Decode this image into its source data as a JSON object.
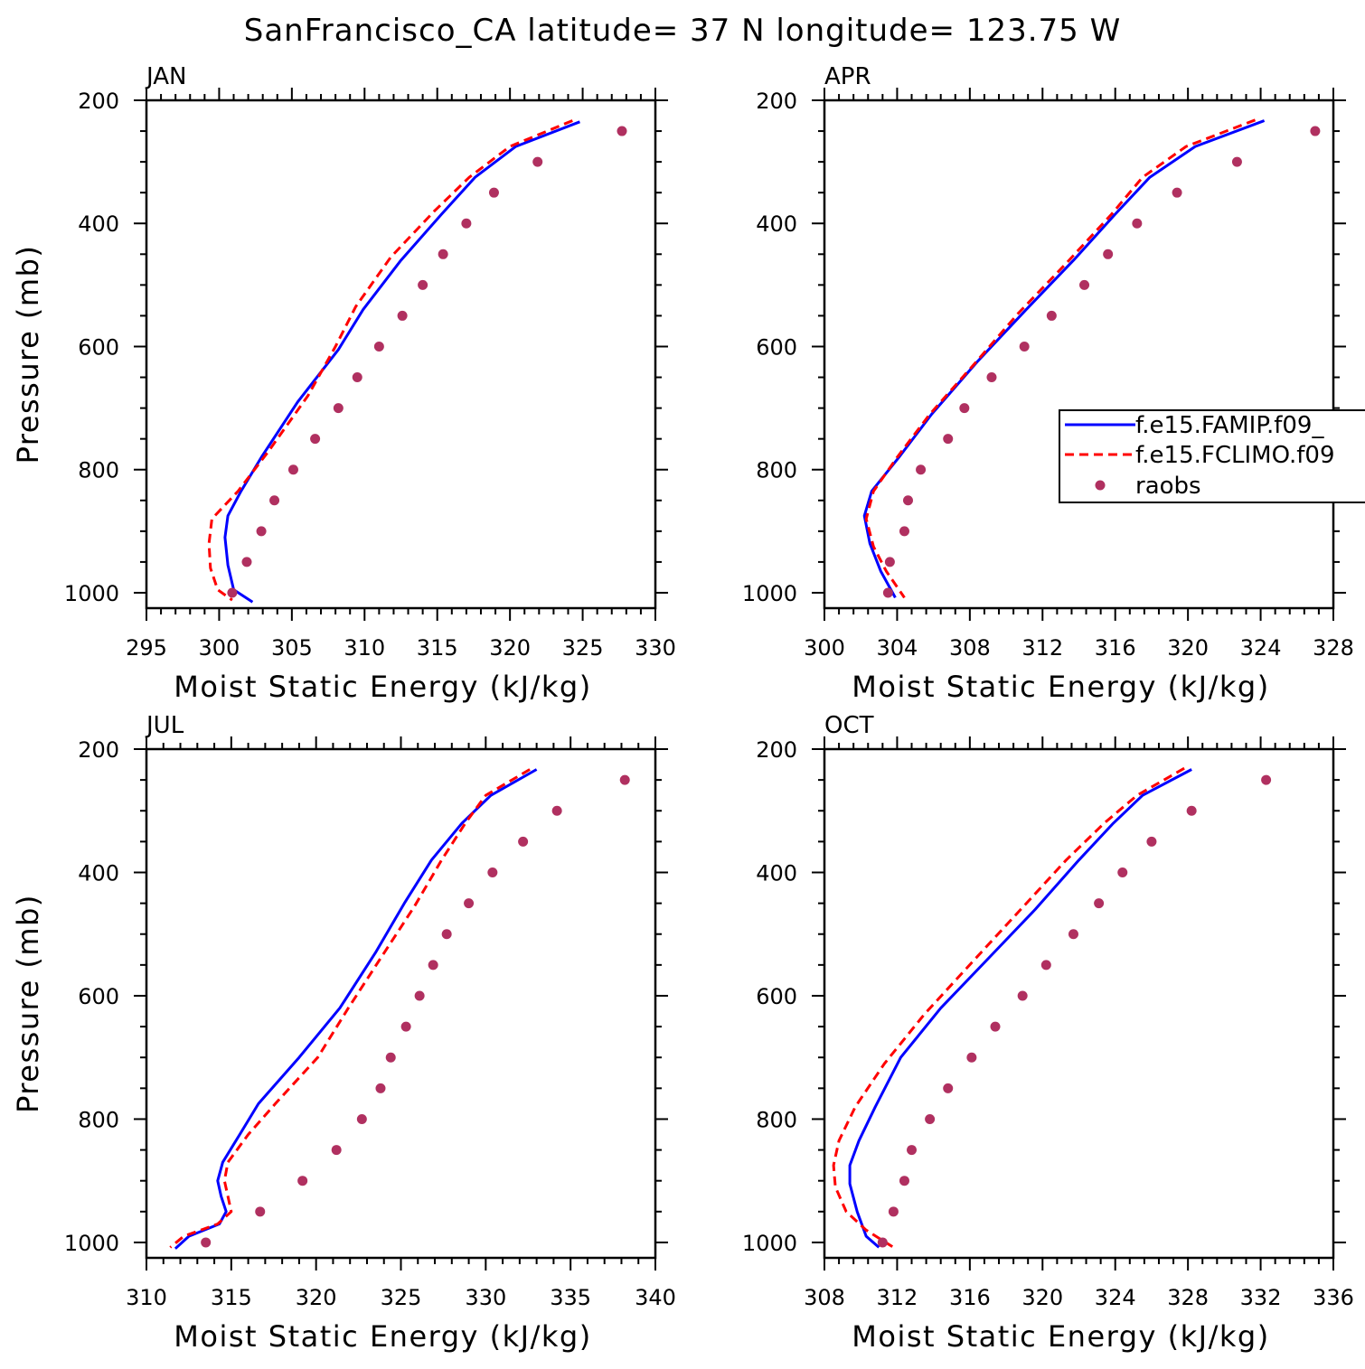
{
  "title": "SanFrancisco_CA  latitude= 37 N longitude= 123.75 W",
  "colors": {
    "famip": "#0000ff",
    "fclimo": "#ff0000",
    "raobs": "#b03060",
    "axes": "#000000",
    "background": "#ffffff"
  },
  "legend": {
    "location": "APR panel, right side",
    "entries": [
      {
        "label": "f.e15.FAMIP.f09_",
        "style": "solid",
        "color": "#0000ff"
      },
      {
        "label": "f.e15.FCLIMO.f09",
        "style": "dashed",
        "color": "#ff0000"
      },
      {
        "label": "raobs",
        "style": "dot",
        "color": "#b03060"
      }
    ]
  },
  "chart_data": [
    {
      "type": "line",
      "panel": "JAN",
      "xlabel": "Moist Static Energy (kJ/kg)",
      "ylabel": "Pressure (mb)",
      "xlim": [
        295,
        330
      ],
      "ylim": [
        1025,
        200
      ],
      "x_ticks": [
        295,
        300,
        305,
        310,
        315,
        320,
        325,
        330
      ],
      "y_ticks": [
        200,
        400,
        600,
        800,
        1000
      ],
      "series": [
        {
          "name": "f.e15.FAMIP.f09_",
          "style": "solid",
          "x": [
            324.8,
            320.4,
            317.6,
            315.3,
            312.5,
            309.9,
            308.2,
            305.4,
            302.9,
            301.5,
            300.6,
            300.4,
            300.6,
            301.0,
            302.3
          ],
          "y": [
            235,
            275,
            325,
            385,
            460,
            540,
            605,
            690,
            780,
            835,
            875,
            910,
            955,
            995,
            1015
          ]
        },
        {
          "name": "f.e15.FCLIMO.f09",
          "style": "dashed",
          "x": [
            324.3,
            320.0,
            317.2,
            314.8,
            311.8,
            309.4,
            308.0,
            306.1,
            303.4,
            301.3,
            299.5,
            299.3,
            299.4,
            299.9,
            300.9
          ],
          "y": [
            233,
            275,
            325,
            380,
            455,
            535,
            600,
            680,
            770,
            835,
            880,
            920,
            960,
            995,
            1012
          ]
        }
      ],
      "points": {
        "name": "raobs",
        "x": [
          327.7,
          321.9,
          318.9,
          317.0,
          315.4,
          314.0,
          312.6,
          311.0,
          309.5,
          308.2,
          306.6,
          305.1,
          303.8,
          302.9,
          301.9,
          300.9
        ],
        "y": [
          250,
          300,
          350,
          400,
          450,
          500,
          550,
          600,
          650,
          700,
          750,
          800,
          850,
          900,
          950,
          1000
        ]
      }
    },
    {
      "type": "line",
      "panel": "APR",
      "xlabel": "Moist Static Energy (kJ/kg)",
      "ylabel": "",
      "xlim": [
        300,
        328
      ],
      "ylim": [
        1025,
        200
      ],
      "x_ticks": [
        300,
        304,
        308,
        312,
        316,
        320,
        324,
        328
      ],
      "y_ticks": [
        200,
        400,
        600,
        800,
        1000
      ],
      "series": [
        {
          "name": "f.e15.FAMIP.f09_",
          "style": "solid",
          "x": [
            324.2,
            320.4,
            317.9,
            316.0,
            313.7,
            311.1,
            308.4,
            305.9,
            304.1,
            302.6,
            302.2,
            302.5,
            303.1,
            303.9
          ],
          "y": [
            233,
            275,
            325,
            385,
            460,
            540,
            625,
            710,
            780,
            835,
            875,
            920,
            965,
            1008
          ]
        },
        {
          "name": "f.e15.FCLIMO.f09",
          "style": "dashed",
          "x": [
            323.7,
            319.9,
            317.5,
            315.8,
            313.3,
            310.7,
            308.2,
            305.8,
            304.0,
            302.7,
            302.3,
            302.7,
            303.4,
            304.4
          ],
          "y": [
            232,
            275,
            325,
            385,
            465,
            545,
            630,
            710,
            780,
            835,
            880,
            925,
            965,
            1008
          ]
        }
      ],
      "points": {
        "name": "raobs",
        "x": [
          327.0,
          322.7,
          319.4,
          317.2,
          315.6,
          314.3,
          312.5,
          311.0,
          309.2,
          307.7,
          306.8,
          305.3,
          304.6,
          304.4,
          303.6,
          303.5
        ],
        "y": [
          250,
          300,
          350,
          400,
          450,
          500,
          550,
          600,
          650,
          700,
          750,
          800,
          850,
          900,
          950,
          1000
        ]
      }
    },
    {
      "type": "line",
      "panel": "JUL",
      "xlabel": "Moist Static Energy (kJ/kg)",
      "ylabel": "Pressure (mb)",
      "xlim": [
        310,
        340
      ],
      "ylim": [
        1025,
        200
      ],
      "x_ticks": [
        310,
        315,
        320,
        325,
        330,
        335,
        340
      ],
      "y_ticks": [
        200,
        400,
        600,
        800,
        1000
      ],
      "series": [
        {
          "name": "f.e15.FAMIP.f09_",
          "style": "solid",
          "x": [
            333.0,
            330.3,
            328.6,
            326.8,
            325.2,
            323.5,
            321.4,
            319.0,
            316.6,
            315.5,
            314.5,
            314.2,
            314.4,
            314.7,
            314.3,
            312.5,
            311.7
          ],
          "y": [
            233,
            275,
            320,
            380,
            450,
            530,
            620,
            700,
            775,
            825,
            870,
            900,
            925,
            950,
            970,
            990,
            1010
          ]
        },
        {
          "name": "f.e15.FCLIMO.f09",
          "style": "dashed",
          "x": [
            332.6,
            330.0,
            328.8,
            327.4,
            325.8,
            323.9,
            321.9,
            320.1,
            317.6,
            316.0,
            314.8,
            314.6,
            314.8,
            315.0,
            314.2,
            312.2,
            311.4
          ],
          "y": [
            233,
            275,
            320,
            380,
            455,
            535,
            620,
            700,
            775,
            825,
            870,
            900,
            925,
            950,
            970,
            990,
            1008
          ]
        }
      ],
      "points": {
        "name": "raobs",
        "x": [
          338.2,
          334.2,
          332.2,
          330.4,
          329.0,
          327.7,
          326.9,
          326.1,
          325.3,
          324.4,
          323.8,
          322.7,
          321.2,
          319.2,
          316.7,
          313.5
        ],
        "y": [
          250,
          300,
          350,
          400,
          450,
          500,
          550,
          600,
          650,
          700,
          750,
          800,
          850,
          900,
          950,
          1000
        ]
      }
    },
    {
      "type": "line",
      "panel": "OCT",
      "xlabel": "Moist Static Energy (kJ/kg)",
      "ylabel": "",
      "xlim": [
        308,
        336
      ],
      "ylim": [
        1025,
        200
      ],
      "x_ticks": [
        308,
        312,
        316,
        320,
        324,
        328,
        332,
        336
      ],
      "y_ticks": [
        200,
        400,
        600,
        800,
        1000
      ],
      "series": [
        {
          "name": "f.e15.FAMIP.f09_",
          "style": "solid",
          "x": [
            328.2,
            325.5,
            323.9,
            322.0,
            319.6,
            317.0,
            314.4,
            312.2,
            310.8,
            309.9,
            309.4,
            309.4,
            309.8,
            310.3,
            311.0
          ],
          "y": [
            233,
            275,
            320,
            380,
            460,
            540,
            620,
            700,
            780,
            835,
            875,
            905,
            950,
            990,
            1008
          ]
        },
        {
          "name": "f.e15.FCLIMO.f09",
          "style": "dashed",
          "x": [
            327.8,
            325.2,
            323.4,
            321.3,
            318.8,
            316.3,
            313.5,
            311.3,
            309.7,
            308.8,
            308.5,
            308.6,
            309.2,
            310.3,
            311.8
          ],
          "y": [
            231,
            275,
            320,
            380,
            460,
            540,
            630,
            710,
            780,
            835,
            875,
            910,
            950,
            980,
            1008
          ]
        }
      ],
      "points": {
        "name": "raobs",
        "x": [
          332.3,
          328.2,
          326.0,
          324.4,
          323.1,
          321.7,
          320.2,
          318.9,
          317.4,
          316.1,
          314.8,
          313.8,
          312.8,
          312.4,
          311.8,
          311.2
        ],
        "y": [
          250,
          300,
          350,
          400,
          450,
          500,
          550,
          600,
          650,
          700,
          750,
          800,
          850,
          900,
          950,
          1000
        ]
      }
    }
  ]
}
